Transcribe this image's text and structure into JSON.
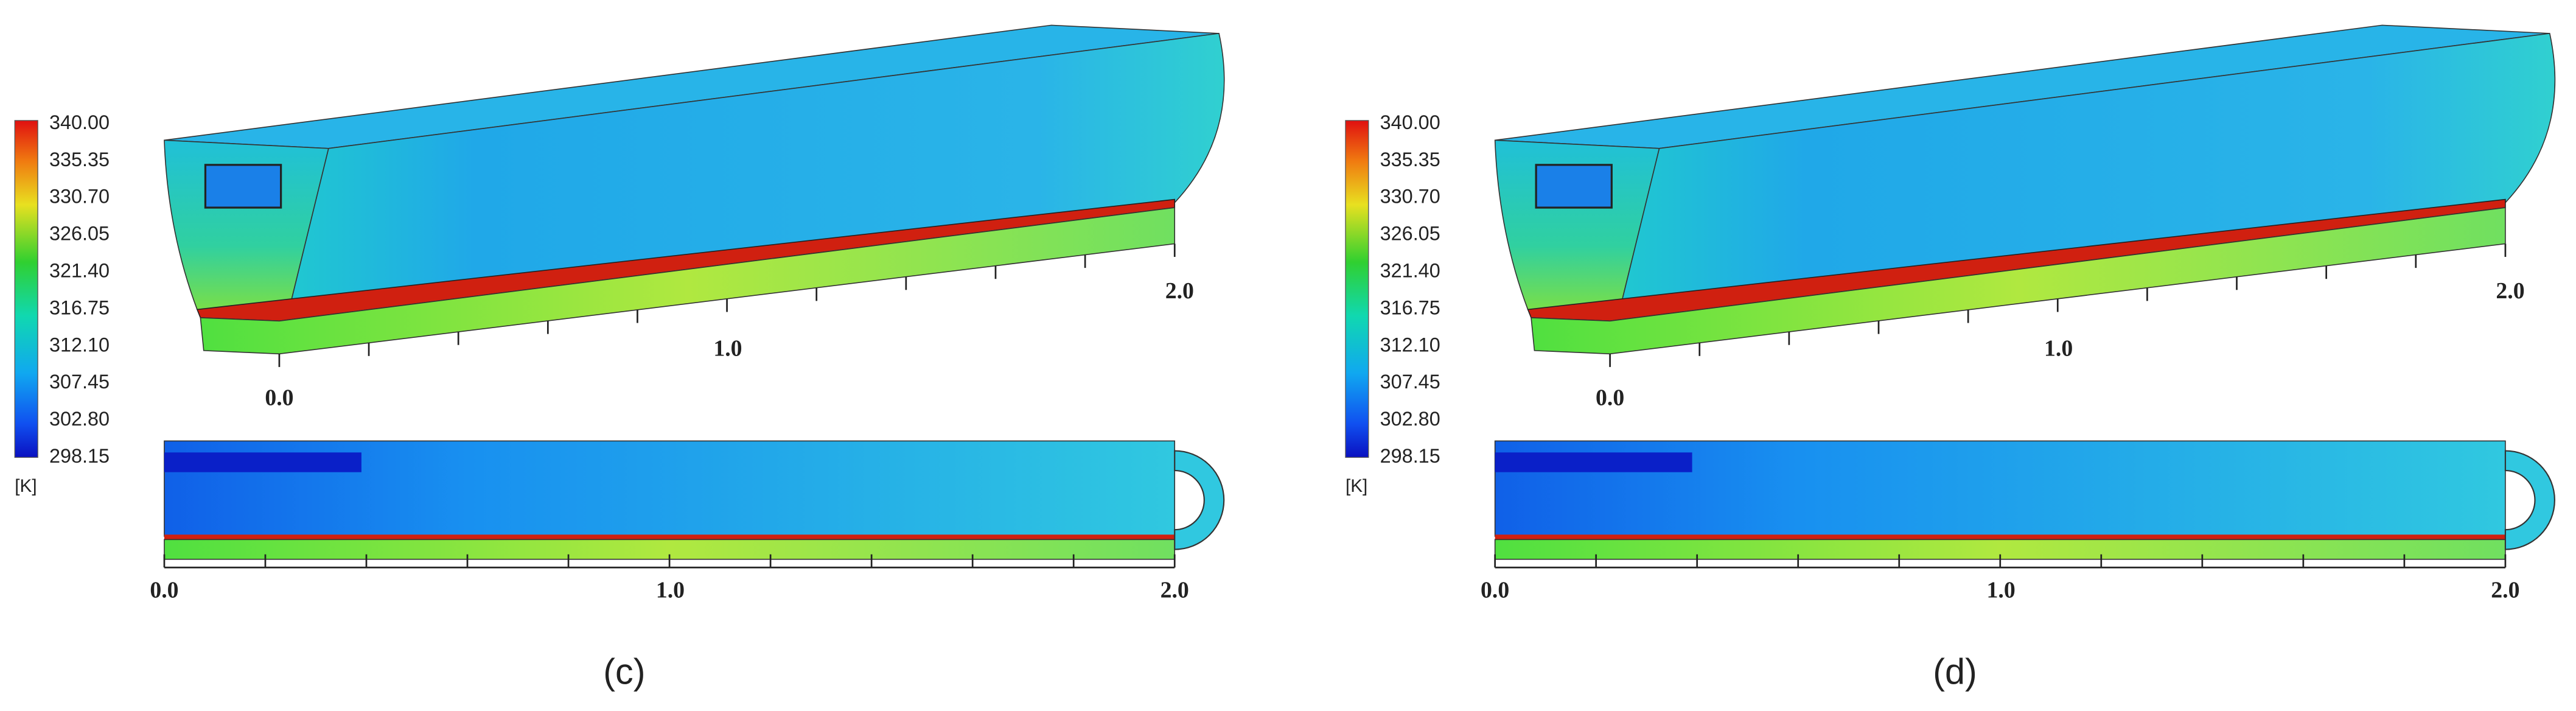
{
  "panels": [
    {
      "label": "(c)",
      "colorbar": {
        "ticks": [
          "340.00",
          "335.35",
          "330.70",
          "326.05",
          "321.40",
          "316.75",
          "312.10",
          "307.45",
          "302.80",
          "298.15"
        ],
        "unit": "[K]"
      },
      "axis_3d": {
        "labels": [
          "0.0",
          "1.0",
          "2.0"
        ]
      },
      "axis_2d": {
        "labels": [
          "0.0",
          "1.0",
          "2.0"
        ]
      }
    },
    {
      "label": "(d)",
      "colorbar": {
        "ticks": [
          "340.00",
          "335.35",
          "330.70",
          "326.05",
          "321.40",
          "316.75",
          "312.10",
          "307.45",
          "302.80",
          "298.15"
        ],
        "unit": "[K]"
      },
      "axis_3d": {
        "labels": [
          "0.0",
          "1.0",
          "2.0"
        ]
      },
      "axis_2d": {
        "labels": [
          "0.0",
          "1.0",
          "2.0"
        ]
      }
    }
  ]
}
